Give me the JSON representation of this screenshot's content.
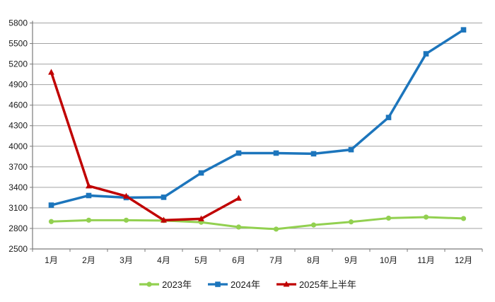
{
  "chart_data": {
    "type": "line",
    "title": "",
    "xlabel": "",
    "ylabel": "",
    "ylim": [
      2500,
      5800
    ],
    "ytick_step": 300,
    "yticks": [
      "5800",
      "5500",
      "5200",
      "4900",
      "4600",
      "4300",
      "4000",
      "3700",
      "3400",
      "3100",
      "2800",
      "2500"
    ],
    "categories": [
      "1月",
      "2月",
      "3月",
      "4月",
      "5月",
      "6月",
      "7月",
      "8月",
      "9月",
      "10月",
      "11月",
      "12月"
    ],
    "series": [
      {
        "name": "2023年",
        "color": "#92D050",
        "marker": "circle",
        "values": [
          2900,
          2920,
          2920,
          2915,
          2890,
          2820,
          2790,
          2850,
          2895,
          2950,
          2965,
          2945
        ]
      },
      {
        "name": "2024年",
        "color": "#1C75BC",
        "marker": "square",
        "values": [
          3140,
          3280,
          3250,
          3255,
          3610,
          3900,
          3900,
          3890,
          3950,
          4420,
          5350,
          5700
        ]
      },
      {
        "name": "2025年上半年",
        "color": "#C00000",
        "marker": "triangle",
        "values": [
          5080,
          3420,
          3270,
          2920,
          2940,
          3240,
          null,
          null,
          null,
          null,
          null,
          null
        ]
      }
    ],
    "grid": "horizontal",
    "legend_position": "bottom",
    "colors": {
      "background": "#FFFFFF",
      "gridline": "#A3A3A3",
      "axis": "#7A7A7A",
      "label": "#1A1A1A"
    }
  }
}
